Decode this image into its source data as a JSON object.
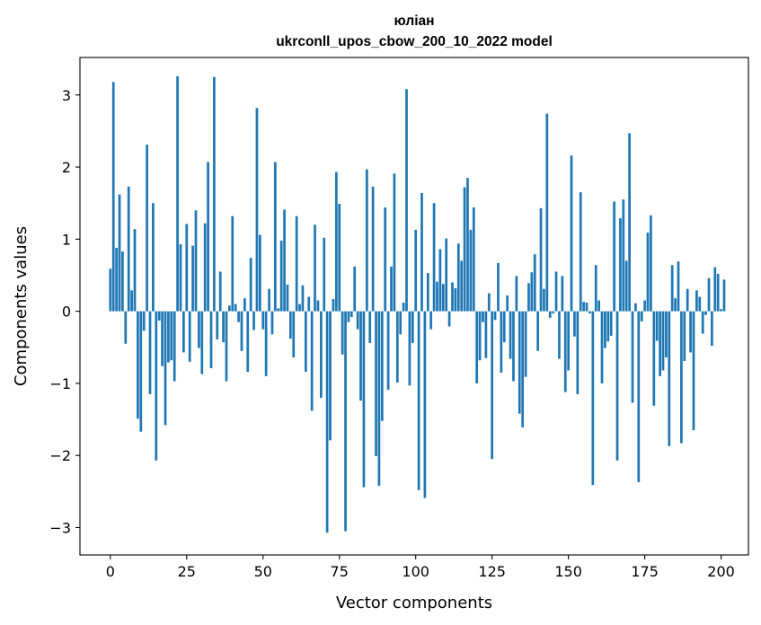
{
  "chart_data": {
    "type": "bar",
    "title_line1": "юліан",
    "title_line2": "ukrconll_upos_cbow_200_10_2022 model",
    "xlabel": "Vector components",
    "ylabel": "Components values",
    "xlim": [
      -9.95,
      208.95
    ],
    "ylim": [
      -3.38,
      3.52
    ],
    "xticks": [
      0,
      25,
      50,
      75,
      100,
      125,
      150,
      175,
      200
    ],
    "yticks": [
      3,
      2,
      1,
      0,
      -1,
      -2,
      -3
    ],
    "ytick_labels": [
      "3",
      "2",
      "1",
      "0",
      "−1",
      "−2",
      "−3"
    ],
    "bar_color": "#1f77b4",
    "values": [
      0.59,
      3.18,
      0.88,
      1.62,
      0.83,
      -0.45,
      1.73,
      0.29,
      1.14,
      -1.49,
      -1.67,
      -0.27,
      2.31,
      -1.15,
      1.5,
      -2.07,
      -0.13,
      -0.76,
      -1.58,
      -0.71,
      -0.68,
      -0.97,
      3.26,
      0.93,
      -0.57,
      1.21,
      -0.7,
      0.91,
      1.4,
      -0.51,
      -0.87,
      1.22,
      2.07,
      -0.79,
      3.25,
      -0.39,
      0.55,
      -0.43,
      -0.97,
      0.08,
      1.32,
      0.1,
      -0.15,
      -0.55,
      0.18,
      -0.84,
      0.74,
      -0.26,
      2.82,
      1.06,
      -0.25,
      -0.9,
      0.31,
      -0.32,
      2.07,
      0.04,
      0.98,
      1.41,
      0.37,
      -0.38,
      -0.64,
      1.32,
      0.1,
      0.36,
      -0.84,
      0.2,
      -1.38,
      1.2,
      0.15,
      -1.2,
      1.02,
      -3.07,
      -1.79,
      0.17,
      1.93,
      1.49,
      -0.6,
      -3.05,
      -0.15,
      -0.08,
      0.62,
      -0.25,
      -1.24,
      -2.44,
      1.97,
      -0.44,
      1.73,
      -2.01,
      -2.42,
      -1.52,
      1.44,
      -1.09,
      0.62,
      1.91,
      -0.99,
      -0.32,
      0.12,
      3.08,
      -1.03,
      -0.44,
      1.13,
      -2.48,
      1.64,
      -2.59,
      0.53,
      -0.25,
      1.5,
      0.41,
      0.86,
      0.38,
      1.01,
      -0.21,
      0.4,
      0.32,
      0.94,
      0.7,
      1.72,
      1.85,
      1.13,
      1.44,
      -1.0,
      -0.68,
      -0.15,
      -0.65,
      0.25,
      -2.05,
      -0.12,
      0.67,
      -0.85,
      -0.43,
      0.22,
      -0.66,
      -0.97,
      0.49,
      -1.42,
      -1.61,
      -0.91,
      0.39,
      0.54,
      0.79,
      -0.55,
      1.43,
      0.31,
      2.74,
      -0.09,
      -0.03,
      0.55,
      -0.66,
      0.49,
      -1.12,
      -0.82,
      2.16,
      -0.35,
      -1.15,
      1.65,
      0.13,
      0.12,
      -0.03,
      -2.41,
      0.64,
      0.15,
      -1.0,
      -0.51,
      -0.42,
      -0.34,
      1.52,
      -2.07,
      1.29,
      1.55,
      0.7,
      2.47,
      -1.27,
      0.11,
      -2.37,
      -0.14,
      0.15,
      1.09,
      1.33,
      -1.31,
      -0.41,
      -0.9,
      -0.82,
      -0.64,
      -1.87,
      0.64,
      0.18,
      0.69,
      -1.83,
      -0.69,
      0.31,
      -0.57,
      -1.65,
      0.29,
      0.2,
      -0.31,
      -0.05,
      0.46,
      -0.48,
      0.61,
      0.52,
      0.03,
      0.44
    ]
  }
}
